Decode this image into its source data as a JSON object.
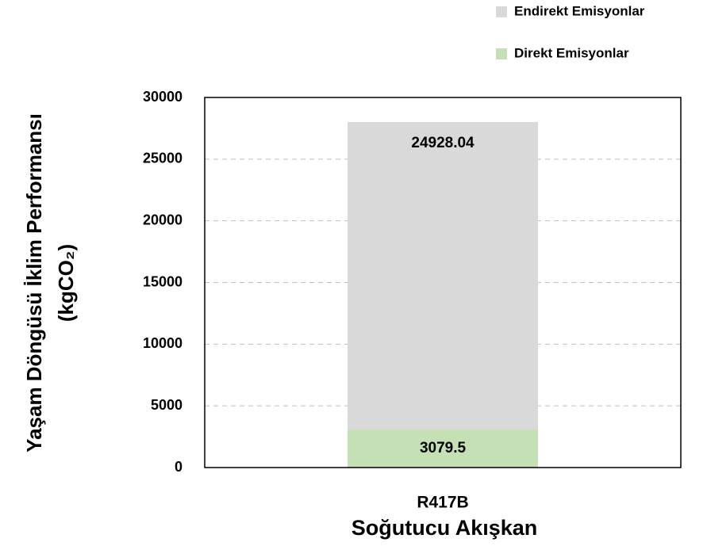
{
  "chart_data": {
    "type": "stacked_bar",
    "ylabel": [
      "Yaşam Döngüsü İklim Performansı",
      "(kgCO₂)"
    ],
    "xlabel": "Soğutucu Akışkan",
    "categories": [
      "R417B"
    ],
    "series": [
      {
        "name": "Direkt Emisyonlar",
        "color": "#c5e0b4",
        "values": [
          3079.5
        ]
      },
      {
        "name": "Endirekt Emisyonlar",
        "color": "#d9d9d9",
        "values": [
          24928.04
        ]
      }
    ],
    "ylim": [
      0,
      30000
    ],
    "yticks": [
      0,
      5000,
      10000,
      15000,
      20000,
      25000,
      30000
    ],
    "grid": true,
    "legend": "top-right"
  }
}
